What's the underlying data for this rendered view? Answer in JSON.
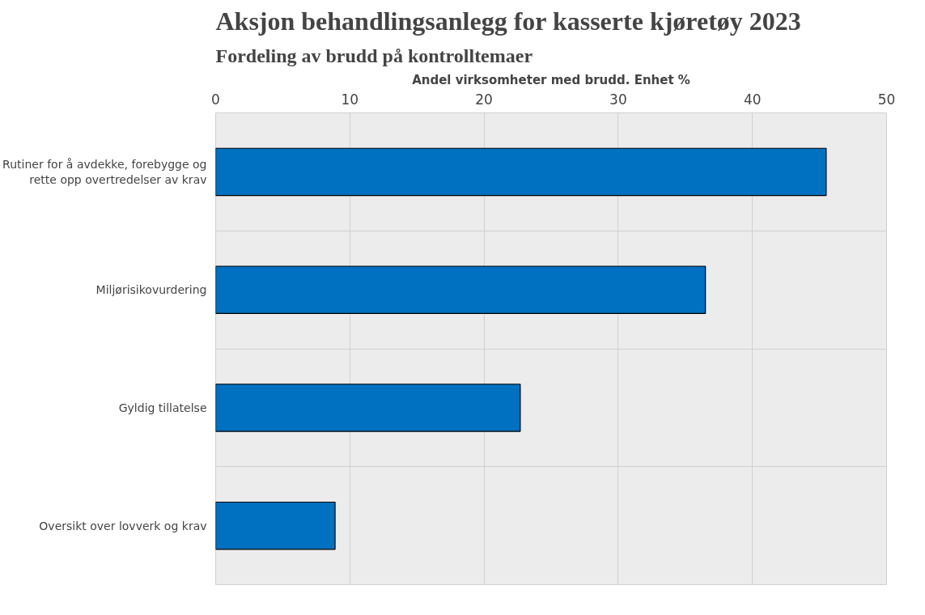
{
  "chart_data": {
    "type": "bar",
    "orientation": "horizontal",
    "title": "Aksjon behandlingsanlegg for kasserte kjøretøy 2023",
    "subtitle": "Fordeling av brudd på kontrolltemaer",
    "xlabel": "Andel virksomheter med brudd. Enhet %",
    "categories": [
      "Rutiner for å avdekke, forebygge og rette opp overtredelser av krav",
      "Miljørisikovurdering",
      "Gyldig tillatelse",
      "Oversikt over lovverk og krav"
    ],
    "values": [
      45.5,
      36.5,
      22.7,
      8.9
    ],
    "color": "#0070c0",
    "xlim": [
      0,
      50
    ],
    "xticks": [
      0,
      10,
      20,
      30,
      40,
      50
    ],
    "grid": true
  }
}
